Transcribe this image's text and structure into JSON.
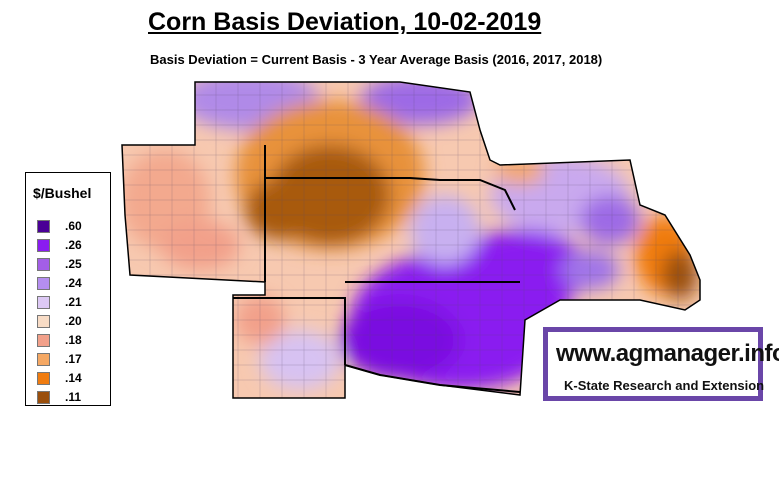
{
  "title": "Corn Basis Deviation, 10-02-2019",
  "subtitle": "Basis Deviation = Current Basis - 3 Year Average Basis (2016, 2017, 2018)",
  "legend": {
    "title": "$/Bushel",
    "items": [
      {
        "label": ".60",
        "color": "#4a0096"
      },
      {
        "label": ".26",
        "color": "#8a1cf0"
      },
      {
        "label": ".25",
        "color": "#a35ee6"
      },
      {
        "label": ".24",
        "color": "#b58ef0"
      },
      {
        "label": ".21",
        "color": "#ddc9f5"
      },
      {
        "label": ".20",
        "color": "#f8dcc6"
      },
      {
        "label": ".18",
        "color": "#f2a08a"
      },
      {
        "label": ".17",
        "color": "#f5a864"
      },
      {
        "label": ".14",
        "color": "#f07c10"
      },
      {
        "label": ".11",
        "color": "#9a4f0d"
      }
    ]
  },
  "brand": {
    "url": "www.agmanager.info",
    "org": "K-State Research and Extension",
    "border_color": "#6a46a8"
  }
}
